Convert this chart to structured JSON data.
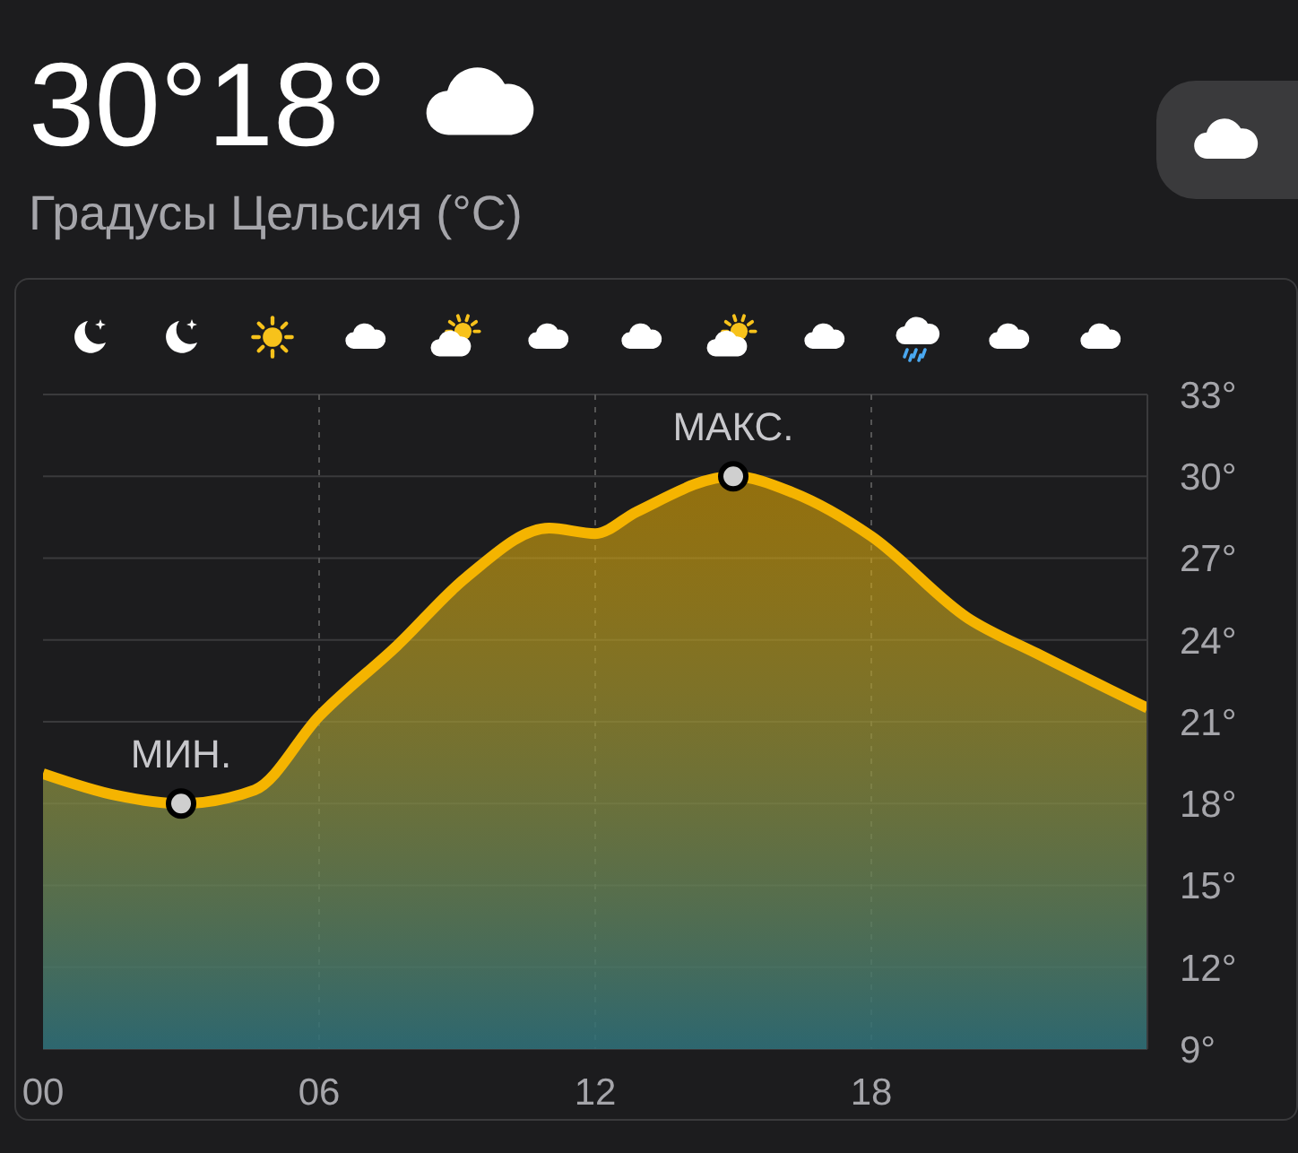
{
  "chart_data": {
    "type": "area",
    "title": "30°18°",
    "subtitle": "Градусы Цельсия (°C)",
    "x": [
      0,
      1.6,
      3,
      4.6,
      6,
      7.7,
      9.2,
      11,
      12,
      12.9,
      15,
      16.3,
      18,
      20.1,
      21.6,
      24
    ],
    "series": [
      {
        "color": "#f5b400",
        "values": [
          19.1,
          18.3,
          18,
          18.5,
          21.2,
          23.8,
          26.3,
          28.1,
          27.9,
          28.7,
          30,
          29.4,
          27.8,
          24.8,
          23.5,
          21.5
        ]
      },
      {
        "type": "scatter",
        "color": "#cfcfcf",
        "x": [
          3,
          15
        ],
        "values": [
          18,
          30
        ],
        "marker": "circle"
      }
    ],
    "xlim": [
      0,
      24
    ],
    "xticks": [
      {
        "value": 0,
        "label": "00"
      },
      {
        "value": 6,
        "label": "06"
      },
      {
        "value": 12,
        "label": "12"
      },
      {
        "value": 18,
        "label": "18"
      }
    ],
    "ylim": [
      9,
      33
    ],
    "yticks": [
      {
        "value": 9,
        "label": "9°"
      },
      {
        "value": 12,
        "label": "12°"
      },
      {
        "value": 15,
        "label": "15°"
      },
      {
        "value": 18,
        "label": "18°"
      },
      {
        "value": 21,
        "label": "21°"
      },
      {
        "value": 24,
        "label": "24°"
      },
      {
        "value": 27,
        "label": "27°"
      },
      {
        "value": 30,
        "label": "30°"
      },
      {
        "value": 33,
        "label": "33°"
      }
    ],
    "annotations": [
      {
        "text": "МИН.",
        "x": 3,
        "y": 18
      },
      {
        "text": "МАКС.",
        "x": 15,
        "y": 30
      }
    ],
    "grid": true
  }
}
